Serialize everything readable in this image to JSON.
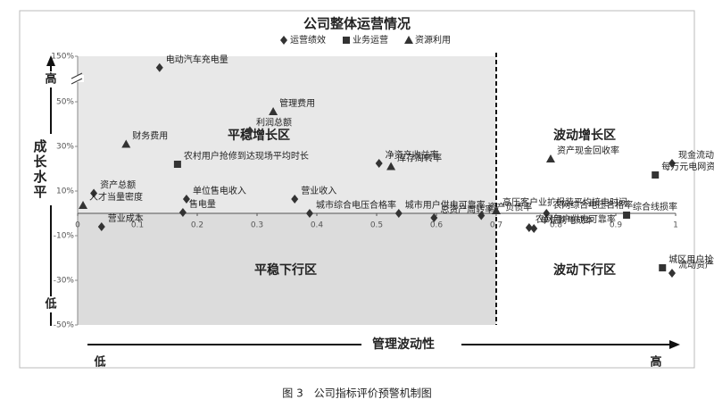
{
  "chart_data": {
    "type": "scatter",
    "title": "公司整体运营情况",
    "xlim": [
      0,
      1
    ],
    "xticks": [
      0,
      0.1,
      0.2,
      0.3,
      0.4,
      0.5,
      0.6,
      0.7,
      0.8,
      0.9,
      1
    ],
    "ylim": [
      -50,
      150
    ],
    "ybreak": [
      50,
      150
    ],
    "yticks": [
      {
        "value": -50,
        "label": "-50%"
      },
      {
        "value": -30,
        "label": "-30%"
      },
      {
        "value": -10,
        "label": "-10%"
      },
      {
        "value": 10,
        "label": "10%"
      },
      {
        "value": 30,
        "label": "30%"
      },
      {
        "value": 50,
        "label": "50%"
      },
      {
        "value": 150,
        "label": "150%"
      }
    ],
    "x_divider": 0.7,
    "y_divider": 0,
    "y_axis_label": "成长水平",
    "y_high": "高",
    "y_low": "低",
    "x_axis_label": "管理波动性",
    "x_low": "低",
    "x_high": "高",
    "quadrants": [
      "平稳增长区",
      "波动增长区",
      "平稳下行区",
      "波动下行区"
    ],
    "caption": "图 3　公司指标评价预警机制图",
    "series": [
      {
        "name": "运营绩效",
        "marker": "diamond",
        "color": "#333333",
        "labels": [
          "电动汽车充电量",
          "利润总额",
          "资产总额",
          "营业成本",
          "单位售电收入",
          "售电量",
          "营业收入",
          "城市综合电压合格率",
          "净资产收益率",
          "城市用户供电可靠率",
          "总资产周转率",
          "资产负债率",
          "农网综合电压合格率",
          "农网用户供电可靠率",
          "单位购电成本",
          "现金流动负债比率",
          "流动资产周转率"
        ],
        "x": [
          0.137,
          0.288,
          0.027,
          0.04,
          0.182,
          0.176,
          0.363,
          0.388,
          0.504,
          0.537,
          0.596,
          0.675,
          0.784,
          0.755,
          0.763,
          0.994,
          0.994
        ],
        "values": [
          125,
          37,
          9,
          -6,
          6.4,
          0.4,
          6.4,
          0,
          22.4,
          0,
          -2,
          -1,
          0,
          -6.4,
          -6.8,
          22.4,
          -26.8
        ]
      },
      {
        "name": "业务运营",
        "marker": "square",
        "color": "#333333",
        "labels": [
          "农村用户抢修到达现场平均时长",
          "每万元电网资产运行维护成本",
          "综合线损率",
          "城区用户抢修到达现场平均时长"
        ],
        "x": [
          0.167,
          0.966,
          0.918,
          0.978
        ],
        "values": [
          22,
          17.2,
          -0.8,
          -24.4
        ]
      },
      {
        "name": "资源利用",
        "marker": "triangle",
        "color": "#333333",
        "labels": [
          "财务费用",
          "人才当量密度",
          "管理费用",
          "库存周转率",
          "高压客户业扩报装平均接电时间",
          "资产现金回收率"
        ],
        "x": [
          0.081,
          0.009,
          0.327,
          0.524,
          0.7,
          0.791
        ],
        "values": [
          31,
          3.6,
          45.6,
          21,
          1.2,
          24.4
        ]
      }
    ]
  }
}
